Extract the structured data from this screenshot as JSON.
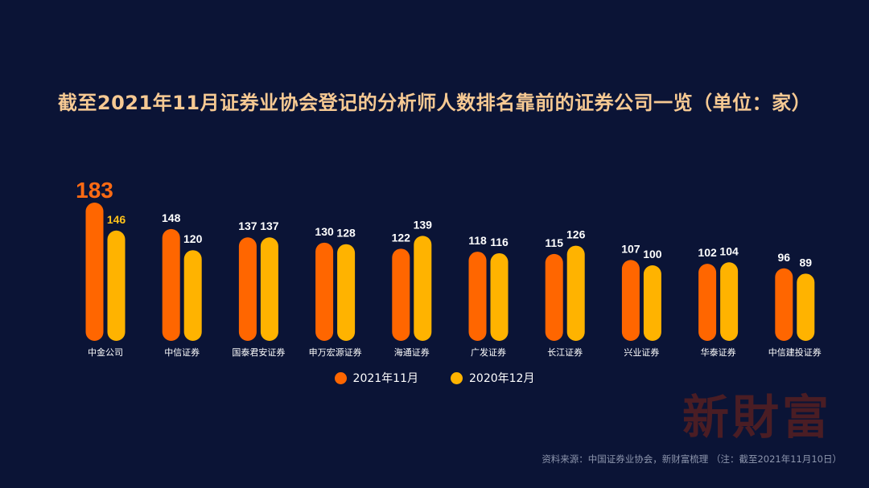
{
  "chart_data": {
    "type": "bar",
    "title": "截至2021年11月证券业协会登记的分析师人数排名靠前的证券公司一览（单位：家）",
    "categories": [
      "中金公司",
      "中信证券",
      "国泰君安证券",
      "申万宏源证券",
      "海通证券",
      "广发证券",
      "长江证券",
      "兴业证券",
      "华泰证券",
      "中信建投证券"
    ],
    "series": [
      {
        "name": "2021年11月",
        "color": "#ff6600",
        "values": [
          183,
          148,
          137,
          130,
          122,
          118,
          115,
          107,
          102,
          96
        ]
      },
      {
        "name": "2020年12月",
        "color": "#ffb300",
        "values": [
          146,
          120,
          137,
          128,
          139,
          116,
          126,
          100,
          104,
          89
        ]
      }
    ],
    "highlight": {
      "category_index": 0,
      "series_index": 0,
      "label_color": "#ff6a13",
      "label2_color": "#ffc21a"
    },
    "ylim": [
      0,
      183
    ],
    "legend_position": "bottom",
    "grid": false
  },
  "watermark": "新財富",
  "source_note": "资料来源：中国证券业协会，新财富梳理 （注：截至2021年11月10日）"
}
